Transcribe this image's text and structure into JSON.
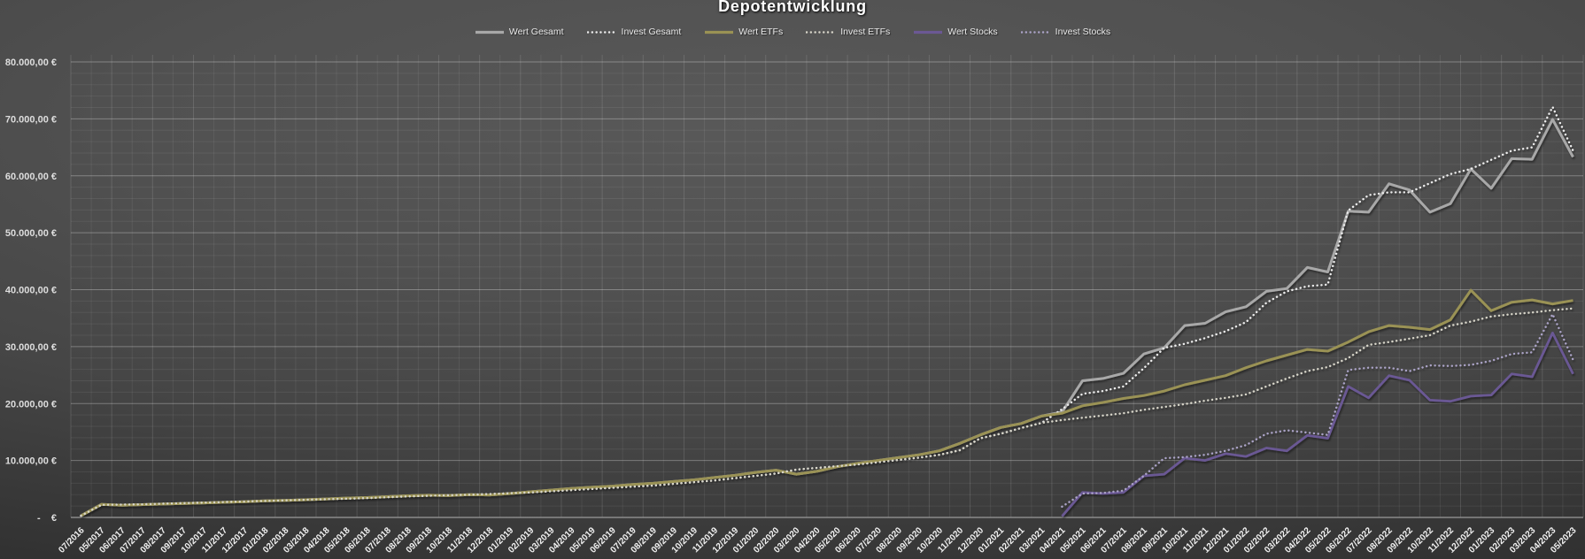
{
  "chart_data": {
    "type": "line",
    "title": "Depotentwicklung",
    "legend_position": "top",
    "grid": true,
    "background": "dark-gray-gradient",
    "x_axis": {
      "label_rotation": -45
    },
    "y_axis": {
      "min": 0,
      "max": 80000,
      "major_unit": 10000,
      "minor_unit": 2000,
      "tick_labels": [
        "-    €",
        "10.000,00 €",
        "20.000,00 €",
        "30.000,00 €",
        "40.000,00 €",
        "50.000,00 €",
        "60.000,00 €",
        "70.000,00 €",
        "80.000,00 €"
      ]
    },
    "categories": [
      "07/2016",
      "05/2017",
      "06/2017",
      "07/2017",
      "08/2017",
      "09/2017",
      "10/2017",
      "11/2017",
      "12/2017",
      "01/2018",
      "02/2018",
      "03/2018",
      "04/2018",
      "05/2018",
      "06/2018",
      "07/2018",
      "08/2018",
      "09/2018",
      "10/2018",
      "11/2018",
      "12/2018",
      "01/2019",
      "02/2019",
      "03/2019",
      "04/2019",
      "05/2019",
      "06/2019",
      "07/2019",
      "08/2019",
      "09/2019",
      "10/2019",
      "11/2019",
      "12/2019",
      "01/2020",
      "02/2020",
      "03/2020",
      "04/2020",
      "05/2020",
      "06/2020",
      "07/2020",
      "08/2020",
      "09/2020",
      "10/2020",
      "11/2020",
      "12/2020",
      "01/2021",
      "02/2021",
      "03/2021",
      "04/2021",
      "05/2021",
      "06/2021",
      "07/2021",
      "08/2021",
      "09/2021",
      "10/2021",
      "11/2021",
      "12/2021",
      "01/2022",
      "02/2022",
      "03/2022",
      "04/2022",
      "05/2022",
      "06/2022",
      "07/2022",
      "08/2022",
      "09/2022",
      "10/2022",
      "11/2022",
      "12/2022",
      "01/2023",
      "02/2023",
      "03/2023",
      "04/2023",
      "05/2023"
    ],
    "series": [
      {
        "name": "Wert Gesamt",
        "style": "solid",
        "color": "#a8a8a8",
        "width": 3.0,
        "values": [
          300,
          2300,
          2150,
          2250,
          2350,
          2450,
          2550,
          2650,
          2750,
          2900,
          3000,
          3100,
          3250,
          3400,
          3500,
          3650,
          3800,
          3900,
          3850,
          4000,
          3950,
          4200,
          4500,
          4800,
          5100,
          5300,
          5500,
          5800,
          6000,
          6300,
          6600,
          7000,
          7400,
          7900,
          8300,
          7600,
          8100,
          8900,
          9500,
          10000,
          10500,
          11000,
          11700,
          13000,
          14500,
          15800,
          16500,
          17800,
          18500,
          24000,
          24400,
          25300,
          28700,
          29800,
          33700,
          34100,
          36100,
          37000,
          39700,
          40200,
          43900,
          43100,
          53800,
          53600,
          58600,
          57500,
          53600,
          55100,
          61200,
          57800,
          63000,
          62900,
          69900,
          63300
        ]
      },
      {
        "name": "Invest Gesamt",
        "style": "dotted",
        "color": "#ededed",
        "width": 2.4,
        "values": [
          300,
          2200,
          2250,
          2300,
          2400,
          2500,
          2600,
          2700,
          2800,
          2900,
          3000,
          3100,
          3200,
          3300,
          3400,
          3550,
          3700,
          3800,
          3900,
          4000,
          4100,
          4250,
          4400,
          4600,
          4800,
          5000,
          5200,
          5400,
          5600,
          5900,
          6200,
          6500,
          6900,
          7300,
          7700,
          8400,
          8700,
          9000,
          9300,
          9700,
          10100,
          10500,
          11000,
          11800,
          13900,
          14700,
          15700,
          16600,
          19000,
          21700,
          22200,
          23000,
          26200,
          29800,
          30500,
          31500,
          32700,
          34300,
          37700,
          39700,
          40600,
          40900,
          53900,
          56600,
          57100,
          57100,
          58700,
          60300,
          61200,
          62800,
          64400,
          65000,
          72100,
          64400
        ]
      },
      {
        "name": "Wert ETFs",
        "style": "solid",
        "color": "#9a9254",
        "width": 3.0,
        "values": [
          300,
          2300,
          2150,
          2250,
          2350,
          2450,
          2550,
          2650,
          2750,
          2900,
          3000,
          3100,
          3250,
          3400,
          3500,
          3650,
          3800,
          3900,
          3850,
          4000,
          3950,
          4200,
          4500,
          4800,
          5100,
          5300,
          5500,
          5800,
          6000,
          6300,
          6600,
          7000,
          7400,
          7900,
          8300,
          7600,
          8100,
          8900,
          9500,
          10000,
          10500,
          11000,
          11700,
          13000,
          14500,
          15800,
          16500,
          17800,
          18300,
          19600,
          20200,
          20900,
          21400,
          22200,
          23300,
          24100,
          24900,
          26300,
          27500,
          28500,
          29500,
          29200,
          30800,
          32600,
          33700,
          33400,
          33000,
          34700,
          39900,
          36300,
          37800,
          38200,
          37500,
          38100
        ]
      },
      {
        "name": "Invest ETFs",
        "style": "dotted",
        "color": "#d8d6ca",
        "width": 2.4,
        "values": [
          300,
          2200,
          2250,
          2300,
          2400,
          2500,
          2600,
          2700,
          2800,
          2900,
          3000,
          3100,
          3200,
          3300,
          3400,
          3550,
          3700,
          3800,
          3900,
          4000,
          4100,
          4250,
          4400,
          4600,
          4800,
          5000,
          5200,
          5400,
          5600,
          5900,
          6200,
          6500,
          6900,
          7300,
          7700,
          8400,
          8700,
          9000,
          9300,
          9700,
          10100,
          10500,
          11000,
          11800,
          13900,
          14700,
          15700,
          16600,
          17100,
          17500,
          17900,
          18300,
          18900,
          19400,
          19900,
          20500,
          21000,
          21600,
          23000,
          24400,
          25700,
          26400,
          28000,
          30300,
          30800,
          31400,
          32000,
          33700,
          34400,
          35300,
          35700,
          36000,
          36400,
          36700
        ]
      },
      {
        "name": "Wert Stocks",
        "style": "solid",
        "color": "#6b5894",
        "width": 2.8,
        "values": [
          null,
          null,
          null,
          null,
          null,
          null,
          null,
          null,
          null,
          null,
          null,
          null,
          null,
          null,
          null,
          null,
          null,
          null,
          null,
          null,
          null,
          null,
          null,
          null,
          null,
          null,
          null,
          null,
          null,
          null,
          null,
          null,
          null,
          null,
          null,
          null,
          null,
          null,
          null,
          null,
          null,
          null,
          null,
          null,
          null,
          null,
          null,
          null,
          200,
          4400,
          4200,
          4400,
          7300,
          7600,
          10400,
          10000,
          11200,
          10700,
          12200,
          11700,
          14400,
          13900,
          23000,
          21000,
          24900,
          24100,
          20600,
          20400,
          21300,
          21500,
          25200,
          24700,
          32400,
          25200
        ]
      },
      {
        "name": "Invest Stocks",
        "style": "dotted",
        "color": "#aba3c7",
        "width": 2.4,
        "values": [
          null,
          null,
          null,
          null,
          null,
          null,
          null,
          null,
          null,
          null,
          null,
          null,
          null,
          null,
          null,
          null,
          null,
          null,
          null,
          null,
          null,
          null,
          null,
          null,
          null,
          null,
          null,
          null,
          null,
          null,
          null,
          null,
          null,
          null,
          null,
          null,
          null,
          null,
          null,
          null,
          null,
          null,
          null,
          null,
          null,
          null,
          null,
          null,
          1900,
          4200,
          4300,
          4700,
          7300,
          10400,
          10600,
          11000,
          11700,
          12700,
          14700,
          15300,
          14900,
          14500,
          25900,
          26300,
          26300,
          25700,
          26700,
          26600,
          26800,
          27500,
          28700,
          29000,
          35700,
          27700
        ]
      }
    ]
  }
}
